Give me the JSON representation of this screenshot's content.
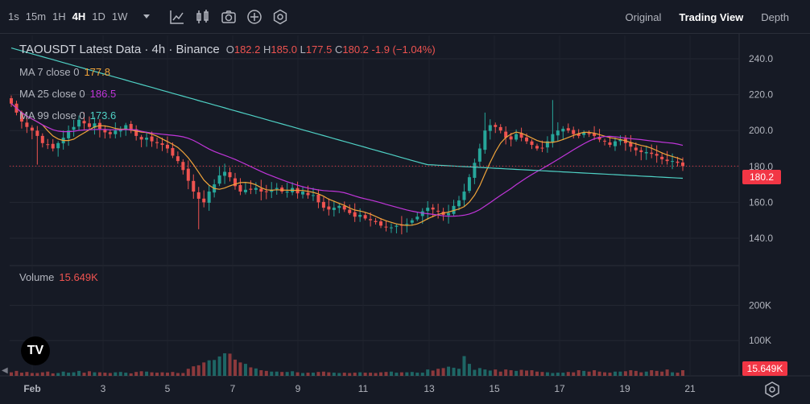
{
  "toolbar": {
    "timeframes": [
      "1s",
      "15m",
      "1H",
      "4H",
      "1D",
      "1W"
    ],
    "active_timeframe": "4H",
    "icons": [
      "chevron-down-icon",
      "indicators-icon",
      "chart-type-icon",
      "camera-icon",
      "add-icon",
      "settings-icon"
    ],
    "views": [
      "Original",
      "Trading View",
      "Depth"
    ],
    "active_view": "Trading View"
  },
  "legend": {
    "title": "TAOUSDT Latest Data · 4h · Binance",
    "open_key": "O",
    "open": "182.2",
    "high_key": "H",
    "high": "185.0",
    "low_key": "L",
    "low": "177.5",
    "close_key": "C",
    "close": "180.2",
    "change": "-1.9 (−1.04%)",
    "ma7_label": "MA 7 close 0",
    "ma7_value": "177.8",
    "ma25_label": "MA 25 close 0",
    "ma25_value": "186.5",
    "ma99_label": "MA 99 close 0",
    "ma99_value": "173.6",
    "volume_label": "Volume",
    "volume_value": "15.649K"
  },
  "price_tag": "180.2",
  "volume_tag": "15.649K",
  "logo_text": "TV",
  "colors": {
    "up": "#26a69a",
    "down": "#ef5350",
    "ma7": "#f0a43a",
    "ma25": "#c035d9",
    "ma99": "#4fd1c5",
    "last_price": "#f23645"
  },
  "chart_data": {
    "type": "candlestick",
    "y_ticks": [
      "240.0",
      "220.0",
      "200.0",
      "180.0",
      "160.0",
      "140.0"
    ],
    "y_tick_values": [
      240,
      220,
      200,
      180,
      160,
      140
    ],
    "volume_ticks": [
      "200K",
      "100K"
    ],
    "volume_tick_values": [
      200000,
      100000
    ],
    "x_ticks": [
      "Feb",
      "3",
      "5",
      "7",
      "9",
      "11",
      "13",
      "15",
      "17",
      "19",
      "21"
    ],
    "ylim": [
      127,
      253
    ],
    "last_price": 180.2,
    "closes": [
      215,
      210,
      205,
      202,
      200,
      197,
      193,
      192,
      190,
      193,
      196,
      200,
      202,
      206,
      204,
      202,
      204,
      201,
      199,
      198,
      200,
      201,
      203,
      200,
      197,
      195,
      196,
      194,
      193,
      192,
      190,
      186,
      183,
      178,
      172,
      166,
      162,
      160,
      166,
      170,
      175,
      177,
      174,
      169,
      166,
      167,
      167,
      168,
      166,
      166,
      167,
      168,
      166,
      166,
      168,
      165,
      166,
      164,
      164,
      160,
      157,
      156,
      157,
      158,
      156,
      154,
      152,
      153,
      151,
      150,
      149,
      147,
      146,
      146,
      147,
      147,
      148,
      150,
      152,
      155,
      157,
      156,
      155,
      153,
      154,
      158,
      161,
      166,
      174,
      182,
      190,
      200,
      203,
      202,
      200,
      196,
      195,
      198,
      196,
      194,
      192,
      190,
      190,
      194,
      198,
      200,
      201,
      200,
      198,
      197,
      199,
      198,
      197,
      195,
      194,
      192,
      194,
      195,
      193,
      191,
      189,
      188,
      188,
      187,
      186,
      184,
      183,
      183,
      182,
      180.2
    ],
    "volume_k": [
      10,
      14,
      9,
      11,
      8,
      8,
      10,
      12,
      7,
      8,
      12,
      9,
      10,
      14,
      9,
      13,
      10,
      10,
      9,
      8,
      10,
      11,
      9,
      7,
      11,
      13,
      12,
      10,
      9,
      10,
      9,
      11,
      8,
      8,
      20,
      27,
      30,
      38,
      44,
      45,
      55,
      64,
      63,
      46,
      38,
      34,
      24,
      21,
      16,
      14,
      12,
      12,
      11,
      11,
      13,
      10,
      8,
      9,
      9,
      11,
      12,
      10,
      9,
      8,
      9,
      8,
      9,
      10,
      9,
      9,
      8,
      10,
      11,
      12,
      9,
      10,
      10,
      11,
      9,
      9,
      18,
      15,
      20,
      22,
      26,
      23,
      20,
      56,
      34,
      17,
      22,
      18,
      15,
      18,
      12,
      18,
      16,
      14,
      17,
      15,
      16,
      12,
      11,
      10,
      8,
      9,
      9,
      11,
      10,
      16,
      14,
      12,
      16,
      12,
      10,
      9,
      12,
      12,
      13,
      16,
      14,
      10,
      12,
      16,
      14,
      12,
      18,
      10,
      9,
      16
    ]
  }
}
